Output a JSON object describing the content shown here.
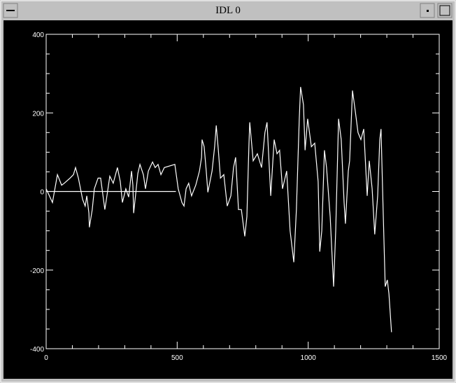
{
  "window_title": "IDL 0",
  "chart_data": {
    "type": "line",
    "series": [
      {
        "color": "#ffffff",
        "x": [
          0,
          24,
          43,
          59,
          69,
          91,
          104,
          112,
          123,
          139,
          149,
          155,
          163,
          165,
          176,
          184,
          198,
          208,
          224,
          232,
          243,
          256,
          272,
          283,
          291,
          304,
          315,
          326,
          331,
          334,
          350,
          358,
          371,
          379,
          390,
          406,
          416,
          427,
          438,
          451,
          491,
          504,
          518,
          526,
          534,
          544,
          555,
          571,
          585,
          593,
          595,
          603,
          611,
          617,
          633,
          643,
          649,
          657,
          665,
          678,
          691,
          705,
          715,
          723,
          734,
          745,
          758,
          766,
          774,
          777,
          790,
          806,
          822,
          835,
          843,
          857,
          870,
          881,
          891,
          902,
          918,
          931,
          945,
          955,
          966,
          971,
          982,
          988,
          998,
          1012,
          1025,
          1038,
          1044,
          1052,
          1062,
          1070,
          1084,
          1097,
          1105,
          1116,
          1126,
          1137,
          1142,
          1153,
          1158,
          1169,
          1180,
          1190,
          1201,
          1212,
          1225,
          1233,
          1244,
          1254,
          1265,
          1273,
          1278,
          1286,
          1294,
          1302,
          1308,
          1318
        ],
        "values": [
          7,
          -28,
          43,
          16,
          21,
          34,
          43,
          61,
          34,
          -20,
          -37,
          -11,
          -55,
          -91,
          -46,
          7,
          34,
          34,
          -46,
          -11,
          39,
          21,
          61,
          25,
          -28,
          7,
          -14,
          52,
          16,
          -55,
          46,
          69,
          43,
          7,
          52,
          75,
          61,
          69,
          43,
          61,
          69,
          7,
          -28,
          -37,
          7,
          21,
          -11,
          16,
          52,
          87,
          132,
          114,
          52,
          -2,
          52,
          114,
          168,
          105,
          34,
          43,
          -37,
          -11,
          61,
          87,
          -46,
          -46,
          -114,
          -64,
          123,
          176,
          78,
          96,
          61,
          150,
          176,
          -11,
          132,
          96,
          105,
          7,
          52,
          -100,
          -180,
          -46,
          185,
          266,
          221,
          105,
          185,
          114,
          123,
          25,
          -153,
          -100,
          105,
          61,
          -64,
          -242,
          -100,
          185,
          132,
          -28,
          -82,
          52,
          78,
          257,
          203,
          150,
          132,
          159,
          -11,
          78,
          7,
          -109,
          -11,
          132,
          159,
          -46,
          -242,
          -225,
          -260,
          -358
        ]
      },
      {
        "color": "#ffffff",
        "x": [
          0,
          495
        ],
        "values": [
          0,
          0
        ]
      }
    ],
    "xlim": [
      0,
      1500
    ],
    "xticks": [
      0,
      500,
      1000,
      1500
    ],
    "ylim": [
      -400,
      400
    ],
    "yticks": [
      -400,
      -200,
      0,
      200,
      400
    ],
    "minor": {
      "x": 5,
      "y": 4
    }
  }
}
